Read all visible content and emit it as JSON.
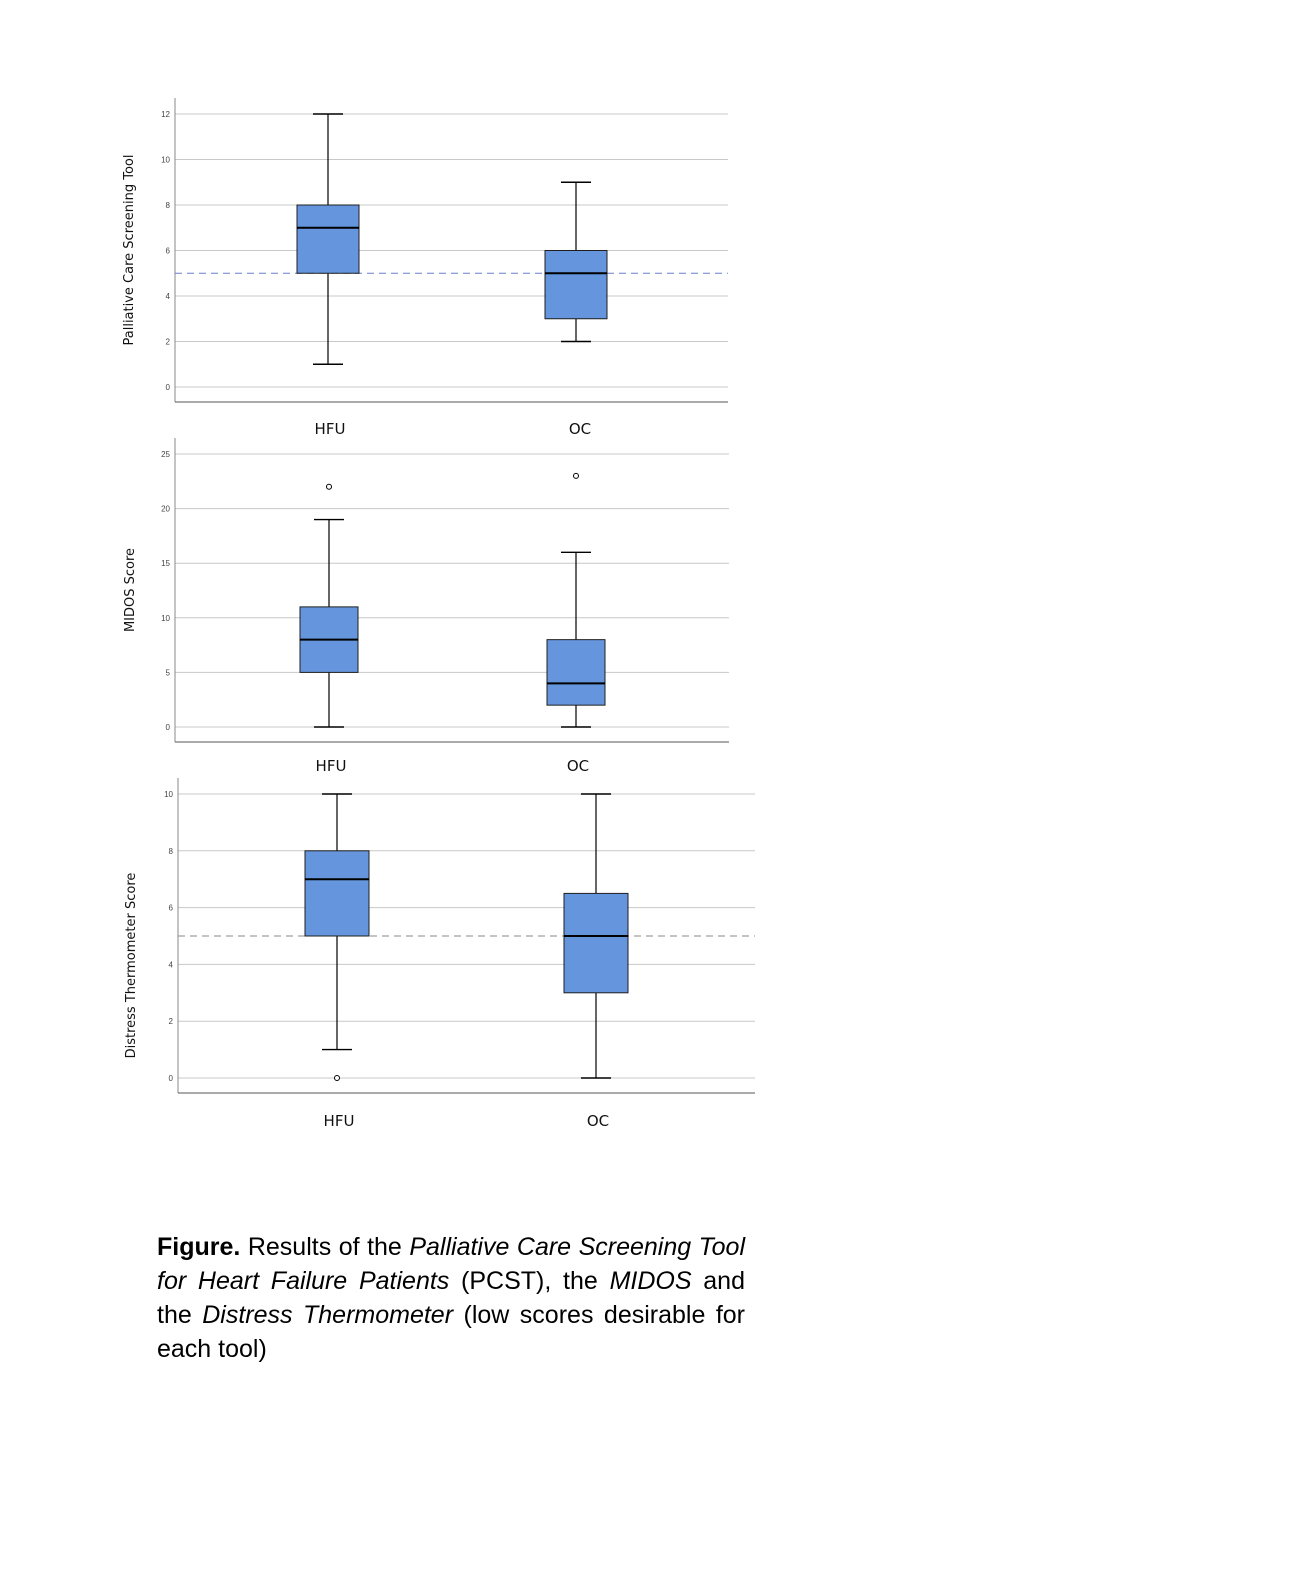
{
  "colors": {
    "box_fill": "#6495dd",
    "box_stroke": "#1f1f1f",
    "grid": "#c8c8c8",
    "reference_line": "#6b7fc8"
  },
  "chart_data": [
    {
      "type": "boxplot",
      "ylabel": "Palliative Care Screening Tool",
      "ylim": [
        0,
        12
      ],
      "yticks": [
        0,
        2,
        4,
        6,
        8,
        10,
        12
      ],
      "grid": true,
      "reference_line": 5,
      "categories": [
        "HFU",
        "OC"
      ],
      "boxes": [
        {
          "category": "HFU",
          "min": 1,
          "q1": 5,
          "median": 7,
          "q3": 8,
          "max": 12,
          "outliers": []
        },
        {
          "category": "OC",
          "min": 2,
          "q1": 3,
          "median": 5,
          "q3": 6,
          "max": 9,
          "outliers": []
        }
      ]
    },
    {
      "type": "boxplot",
      "ylabel": "MIDOS Score",
      "ylim": [
        0,
        25
      ],
      "yticks": [
        0,
        5,
        10,
        15,
        20,
        25
      ],
      "grid": true,
      "reference_line": null,
      "categories": [
        "HFU",
        "OC"
      ],
      "boxes": [
        {
          "category": "HFU",
          "min": 0,
          "q1": 5,
          "median": 8,
          "q3": 11,
          "max": 19,
          "outliers": [
            22
          ]
        },
        {
          "category": "OC",
          "min": 0,
          "q1": 2,
          "median": 4,
          "q3": 8,
          "max": 16,
          "outliers": [
            23
          ]
        }
      ]
    },
    {
      "type": "boxplot",
      "ylabel": "Distress Thermometer Score",
      "ylim": [
        0,
        10
      ],
      "yticks": [
        0,
        2,
        4,
        6,
        8,
        10
      ],
      "grid": true,
      "reference_line": 5,
      "categories": [
        "HFU",
        "OC"
      ],
      "boxes": [
        {
          "category": "HFU",
          "min": 1,
          "q1": 5,
          "median": 7,
          "q3": 8,
          "max": 10,
          "outliers": [
            0
          ]
        },
        {
          "category": "OC",
          "min": 0,
          "q1": 3,
          "median": 5,
          "q3": 6.5,
          "max": 10,
          "outliers": []
        }
      ]
    }
  ],
  "caption": {
    "lead": "Figure.",
    "t1": " Results of the ",
    "i1": "Palliative Care Screening Tool for Heart Failure Patients",
    "t2": " (PCST), the ",
    "i2": "MIDOS",
    "t3": " and the ",
    "i3": "Distress Thermometer",
    "t4": " (low scores desirable for each tool)"
  }
}
